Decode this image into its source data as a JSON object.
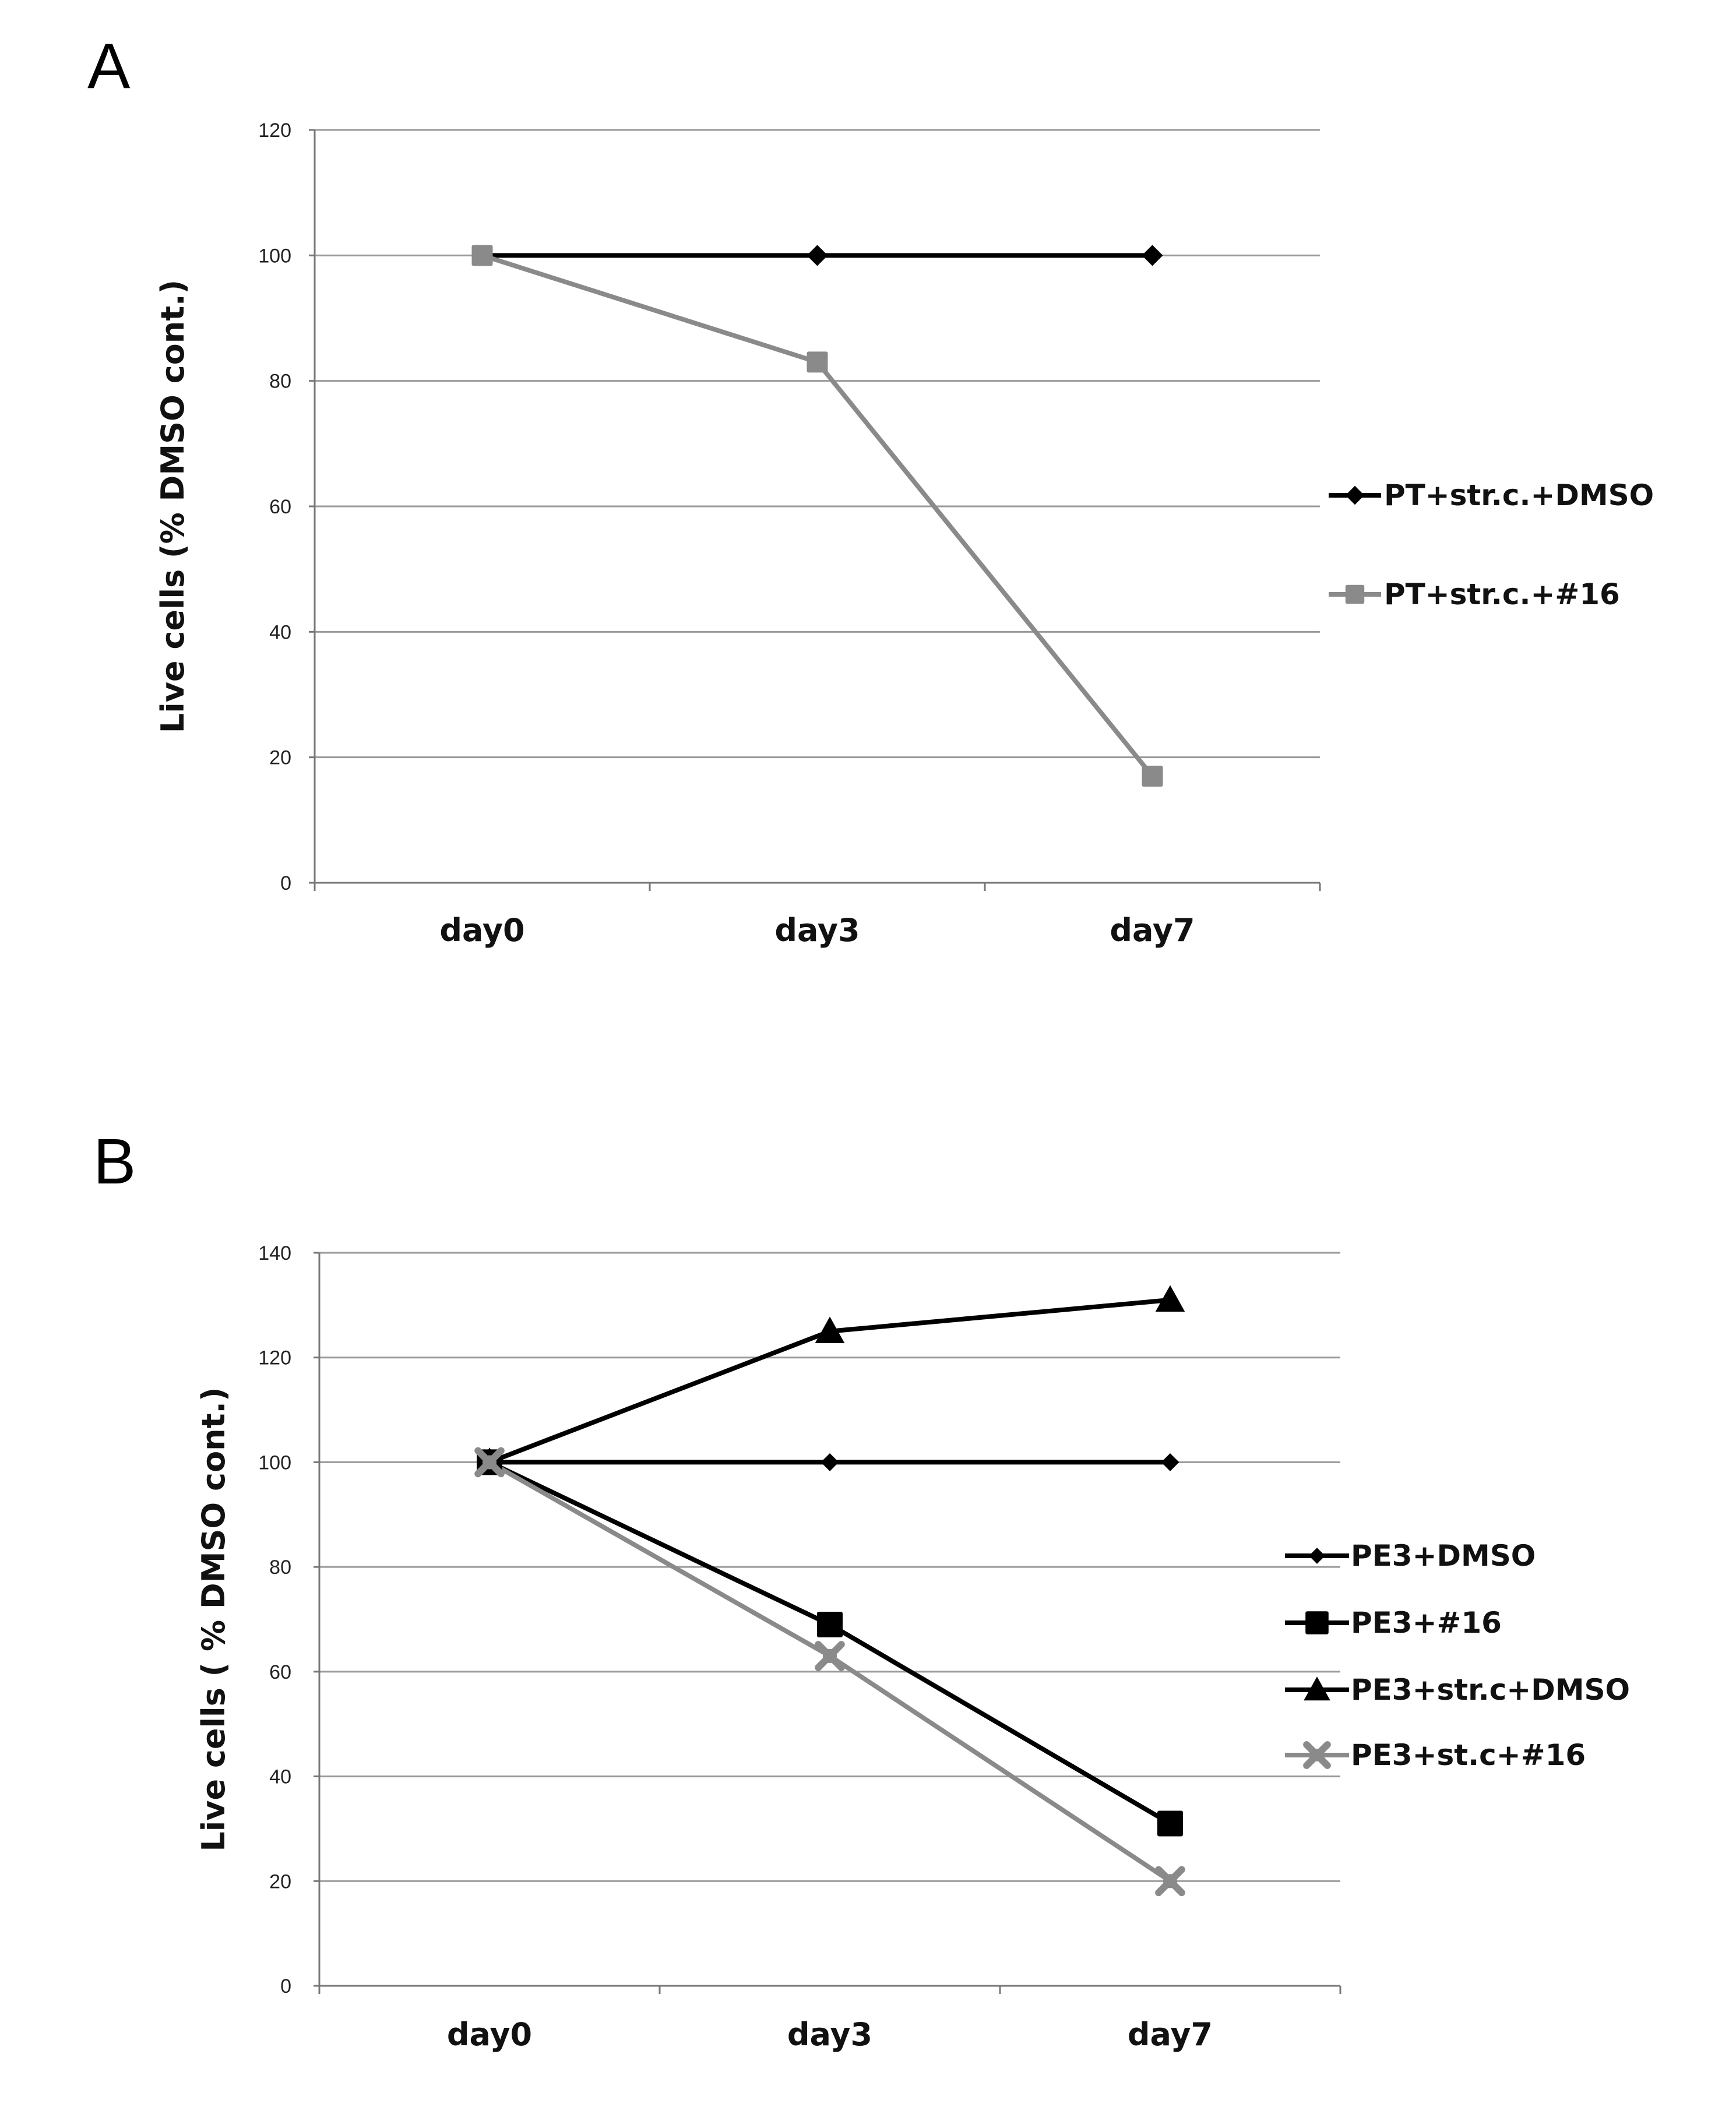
{
  "panels": {
    "a_label": "A",
    "b_label": "B"
  },
  "chart_data": [
    {
      "type": "line",
      "panel": "A",
      "categories": [
        "day0",
        "day3",
        "day7"
      ],
      "ylabel": "Live cells (% DMSO cont.)",
      "xlabel": "",
      "ylim": [
        0,
        120
      ],
      "yticks": [
        0,
        20,
        40,
        60,
        80,
        100,
        120
      ],
      "grid": true,
      "legend": "right",
      "series": [
        {
          "name": "PT+str.c.+DMSO",
          "values": [
            100,
            100,
            100
          ],
          "color": "#000000",
          "marker": "diamond"
        },
        {
          "name": "PT+str.c.+#16",
          "values": [
            100,
            83,
            17
          ],
          "color": "#8a8a8a",
          "marker": "square"
        }
      ]
    },
    {
      "type": "line",
      "panel": "B",
      "categories": [
        "day0",
        "day3",
        "day7"
      ],
      "ylabel": "Live cells ( % DMSO cont.)",
      "xlabel": "",
      "ylim": [
        0,
        140
      ],
      "yticks": [
        0,
        20,
        40,
        60,
        80,
        100,
        120,
        140
      ],
      "grid": true,
      "legend": "right",
      "series": [
        {
          "name": "PE3+DMSO",
          "values": [
            100,
            100,
            100
          ],
          "color": "#000000",
          "marker": "diamond-small"
        },
        {
          "name": "PE3+#16",
          "values": [
            100,
            69,
            31
          ],
          "color": "#000000",
          "marker": "square"
        },
        {
          "name": "PE3+str.c+DMSO",
          "values": [
            100,
            125,
            131
          ],
          "color": "#000000",
          "marker": "triangle"
        },
        {
          "name": "PE3+st.c+#16",
          "values": [
            100,
            63,
            20
          ],
          "color": "#8a8a8a",
          "marker": "x"
        }
      ]
    }
  ]
}
